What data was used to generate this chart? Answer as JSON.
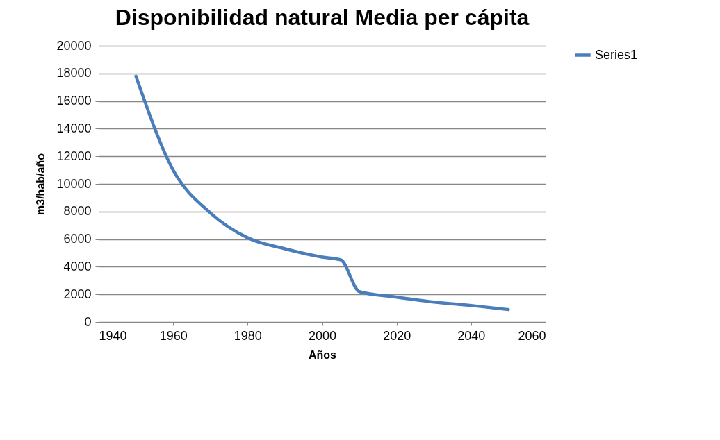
{
  "chart_data": {
    "type": "line",
    "title": "Disponibilidad natural Media per cápita",
    "xlabel": "Años",
    "ylabel": "m3/hab/año",
    "x": [
      1950,
      1960,
      1970,
      1980,
      1990,
      2000,
      2005,
      2010,
      2020,
      2030,
      2040,
      2050
    ],
    "series": [
      {
        "name": "Series1",
        "color": "#4a7ebb",
        "values": [
          17800,
          11000,
          7900,
          6100,
          5300,
          4700,
          4500,
          2200,
          1800,
          1450,
          1200,
          900
        ]
      }
    ],
    "xlim": [
      1940,
      2060
    ],
    "xticks": [
      1940,
      1960,
      1980,
      2000,
      2020,
      2040,
      2060
    ],
    "ylim": [
      0,
      20000
    ],
    "yticks": [
      0,
      2000,
      4000,
      6000,
      8000,
      10000,
      12000,
      14000,
      16000,
      18000,
      20000
    ],
    "grid": "y",
    "legend": "right",
    "marker": "none",
    "line_style": "solid"
  }
}
